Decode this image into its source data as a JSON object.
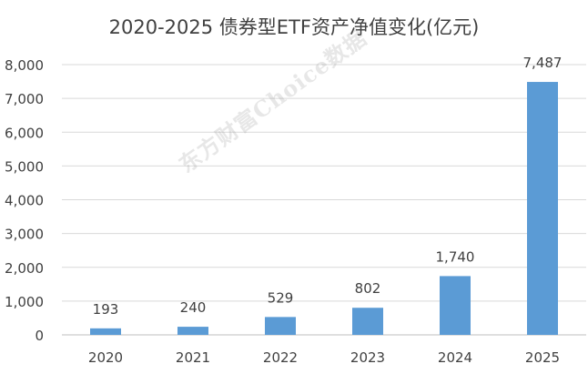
{
  "chart_data": {
    "type": "bar",
    "title": "2020-2025 债券型ETF资产净值变化(亿元)",
    "categories": [
      "2020",
      "2021",
      "2022",
      "2023",
      "2024",
      "2025"
    ],
    "values": [
      193,
      240,
      529,
      802,
      1740,
      7487
    ],
    "data_labels": [
      "193",
      "240",
      "529",
      "802",
      "1,740",
      "7,487"
    ],
    "ylim": [
      0,
      8000
    ],
    "yticks": [
      0,
      1000,
      2000,
      3000,
      4000,
      5000,
      6000,
      7000,
      8000
    ],
    "ytick_labels": [
      "0",
      "1,000",
      "2,000",
      "3,000",
      "4,000",
      "5,000",
      "6,000",
      "7,000",
      "8,000"
    ],
    "xlabel": "",
    "ylabel": "",
    "grid": true,
    "bar_color": "#5B9BD5",
    "gridline_color": "#D9D9D9",
    "watermark": "东方财富Choice数据"
  }
}
